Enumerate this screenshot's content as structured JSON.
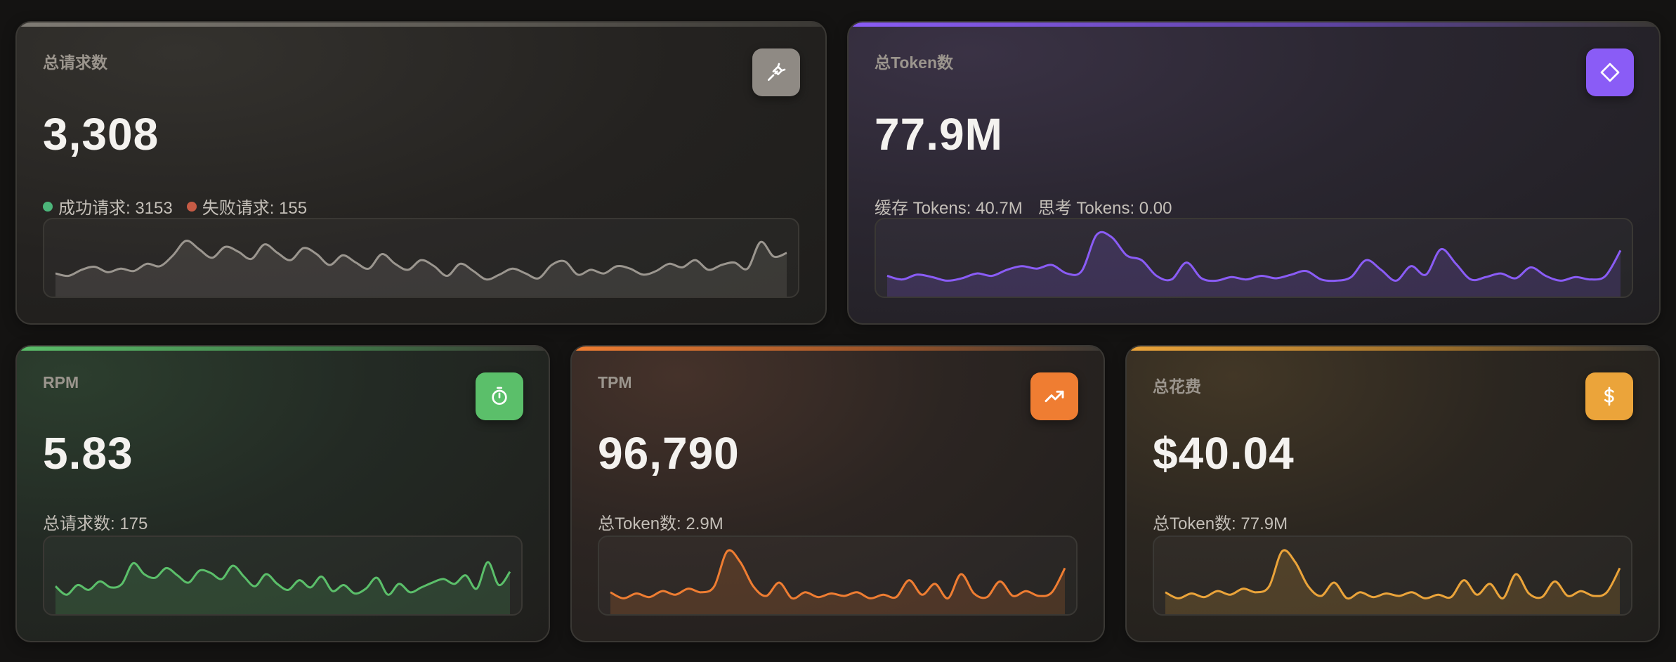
{
  "cards": [
    {
      "id": "total-requests",
      "label": "总请求数",
      "value": "3,308",
      "icon": "plug-icon",
      "accent": "#9b968f",
      "sub": {
        "success_label": "成功请求: 3153",
        "fail_label": "失败请求: 155",
        "success_color": "#4cb57a",
        "fail_color": "#c65b45"
      },
      "sparkline": [
        0.22,
        0.18,
        0.28,
        0.33,
        0.24,
        0.3,
        0.26,
        0.38,
        0.34,
        0.52,
        0.76,
        0.62,
        0.48,
        0.66,
        0.58,
        0.46,
        0.7,
        0.56,
        0.44,
        0.64,
        0.54,
        0.36,
        0.52,
        0.4,
        0.3,
        0.54,
        0.38,
        0.28,
        0.44,
        0.34,
        0.18,
        0.38,
        0.26,
        0.12,
        0.2,
        0.3,
        0.22,
        0.14,
        0.36,
        0.42,
        0.2,
        0.28,
        0.22,
        0.34,
        0.3,
        0.2,
        0.26,
        0.38,
        0.32,
        0.44,
        0.28,
        0.36,
        0.4,
        0.3,
        0.74,
        0.5,
        0.56
      ]
    },
    {
      "id": "total-tokens",
      "label": "总Token数",
      "value": "77.9M",
      "icon": "diamond-icon",
      "accent": "#8a5cf6",
      "sub": {
        "cache_label": "缓存 Tokens: 40.7M",
        "think_label": "思考 Tokens: 0.00"
      },
      "sparkline": [
        0.18,
        0.12,
        0.2,
        0.16,
        0.1,
        0.14,
        0.22,
        0.18,
        0.28,
        0.34,
        0.3,
        0.36,
        0.22,
        0.26,
        0.86,
        0.82,
        0.52,
        0.44,
        0.18,
        0.12,
        0.4,
        0.14,
        0.1,
        0.16,
        0.12,
        0.18,
        0.14,
        0.2,
        0.26,
        0.12,
        0.1,
        0.16,
        0.44,
        0.28,
        0.1,
        0.34,
        0.2,
        0.62,
        0.38,
        0.12,
        0.16,
        0.22,
        0.14,
        0.32,
        0.18,
        0.1,
        0.16,
        0.12,
        0.18,
        0.6
      ]
    },
    {
      "id": "rpm",
      "label": "RPM",
      "value": "5.83",
      "icon": "stopwatch-icon",
      "accent": "#5bbf6a",
      "sub": {
        "text": "总请求数: 175"
      },
      "sparkline": [
        0.3,
        0.16,
        0.32,
        0.24,
        0.38,
        0.28,
        0.34,
        0.68,
        0.5,
        0.44,
        0.6,
        0.48,
        0.36,
        0.56,
        0.52,
        0.42,
        0.64,
        0.46,
        0.3,
        0.5,
        0.34,
        0.24,
        0.4,
        0.28,
        0.46,
        0.22,
        0.32,
        0.18,
        0.26,
        0.44,
        0.16,
        0.34,
        0.2,
        0.28,
        0.36,
        0.42,
        0.34,
        0.48,
        0.26,
        0.7,
        0.32,
        0.54
      ]
    },
    {
      "id": "tpm",
      "label": "TPM",
      "value": "96,790",
      "icon": "trending-up-icon",
      "accent": "#ef7d32",
      "sub": {
        "text": "总Token数: 2.9M"
      },
      "sparkline": [
        0.2,
        0.1,
        0.18,
        0.12,
        0.22,
        0.16,
        0.26,
        0.2,
        0.3,
        0.88,
        0.7,
        0.3,
        0.14,
        0.36,
        0.1,
        0.2,
        0.12,
        0.18,
        0.14,
        0.2,
        0.1,
        0.16,
        0.12,
        0.4,
        0.16,
        0.34,
        0.1,
        0.5,
        0.18,
        0.12,
        0.38,
        0.14,
        0.22,
        0.14,
        0.2,
        0.6
      ]
    },
    {
      "id": "total-cost",
      "label": "总花费",
      "value": "$40.04",
      "icon": "dollar-icon",
      "accent": "#eba43a",
      "sub": {
        "text": "总Token数: 77.9M"
      },
      "sparkline": [
        0.2,
        0.1,
        0.18,
        0.12,
        0.22,
        0.16,
        0.26,
        0.2,
        0.3,
        0.88,
        0.7,
        0.3,
        0.14,
        0.36,
        0.1,
        0.2,
        0.12,
        0.18,
        0.14,
        0.2,
        0.1,
        0.16,
        0.12,
        0.4,
        0.16,
        0.34,
        0.1,
        0.5,
        0.18,
        0.12,
        0.38,
        0.14,
        0.22,
        0.14,
        0.2,
        0.6
      ]
    }
  ]
}
